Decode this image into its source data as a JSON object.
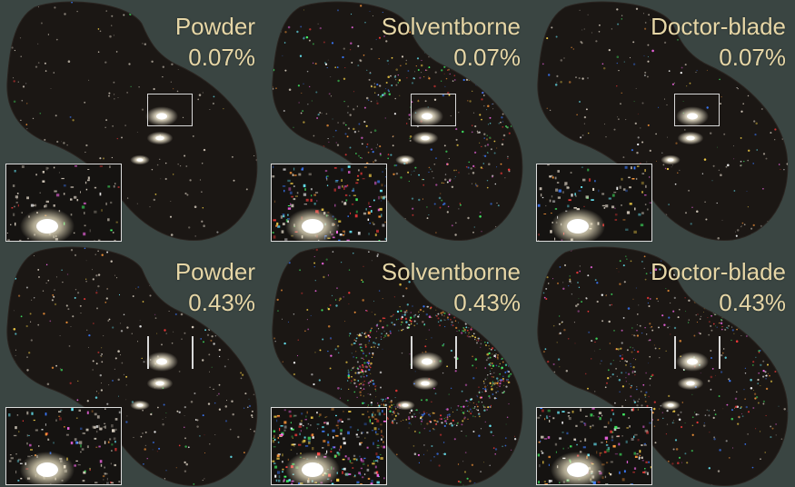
{
  "panels": [
    {
      "id": "p1",
      "material": "Powder",
      "concentration": "0.07%",
      "sparkle": 0.15,
      "colorful": 0.2,
      "ring": 0.0
    },
    {
      "id": "p2",
      "material": "Solventborne",
      "concentration": "0.07%",
      "sparkle": 0.55,
      "colorful": 0.8,
      "ring": 0.4
    },
    {
      "id": "p3",
      "material": "Doctor-blade",
      "concentration": "0.07%",
      "sparkle": 0.25,
      "colorful": 0.45,
      "ring": 0.15
    },
    {
      "id": "p4",
      "material": "Powder",
      "concentration": "0.43%",
      "sparkle": 0.35,
      "colorful": 0.4,
      "ring": 0.1
    },
    {
      "id": "p5",
      "material": "Solventborne",
      "concentration": "0.43%",
      "sparkle": 1.0,
      "colorful": 1.0,
      "ring": 1.0
    },
    {
      "id": "p6",
      "material": "Doctor-blade",
      "concentration": "0.43%",
      "sparkle": 0.6,
      "colorful": 0.75,
      "ring": 0.5
    }
  ],
  "colors": {
    "background": "#3a4542",
    "label": "#e6d6a6",
    "object": "#1b1714",
    "frame": "#dcdcdc"
  }
}
